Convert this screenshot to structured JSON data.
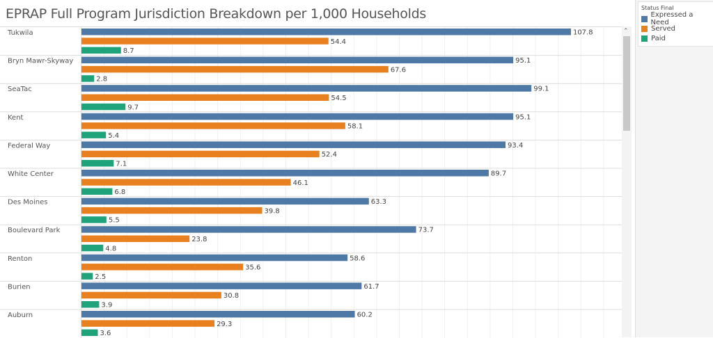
{
  "chart_data": {
    "type": "bar",
    "orientation": "horizontal",
    "title": "EPRAP Full Program Jurisdiction Breakdown per 1,000 Households",
    "categories": [
      "Tukwila",
      "Bryn Mawr-Skyway",
      "SeaTac",
      "Kent",
      "Federal Way",
      "White Center",
      "Des Moines",
      "Boulevard Park",
      "Renton",
      "Burien",
      "Auburn"
    ],
    "series": [
      {
        "name": "Expressed a Need",
        "color": "#4e79a7",
        "values": [
          107.8,
          95.1,
          99.1,
          95.1,
          93.4,
          89.7,
          63.3,
          73.7,
          58.6,
          61.7,
          60.2
        ]
      },
      {
        "name": "Served",
        "color": "#e8801f",
        "values": [
          54.4,
          67.6,
          54.5,
          58.1,
          52.4,
          46.1,
          39.8,
          23.8,
          35.6,
          30.8,
          29.3
        ]
      },
      {
        "name": "Paid",
        "color": "#1fa37a",
        "values": [
          8.7,
          2.8,
          9.7,
          5.4,
          7.1,
          6.8,
          5.5,
          4.8,
          2.5,
          3.9,
          3.6
        ]
      }
    ],
    "xlim": [
      0,
      119
    ],
    "grid": true,
    "legend": {
      "title": "Status Final",
      "placement": "right"
    },
    "data_labels": true
  }
}
